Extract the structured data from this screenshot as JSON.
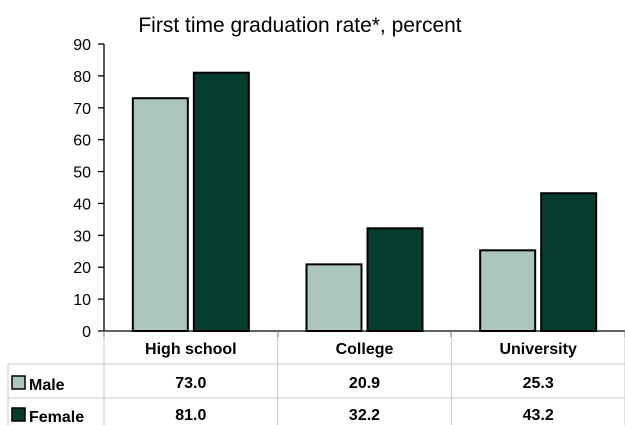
{
  "chart_data": {
    "type": "bar",
    "title": "First time graduation rate*, percent",
    "categories": [
      "High school",
      "College",
      "University"
    ],
    "series": [
      {
        "name": "Male",
        "values": [
          73.0,
          20.9,
          25.3
        ],
        "labels": [
          "73.0",
          "20.9",
          "25.3"
        ],
        "color": "#adc6bc"
      },
      {
        "name": "Female",
        "values": [
          81.0,
          32.2,
          43.2
        ],
        "labels": [
          "81.0",
          "32.2",
          "43.2"
        ],
        "color": "#063d2e"
      }
    ],
    "ylim": [
      0,
      90
    ],
    "yticks": [
      0,
      10,
      20,
      30,
      40,
      50,
      60,
      70,
      80,
      90
    ],
    "grid": false,
    "legend": "data-table-rows"
  }
}
